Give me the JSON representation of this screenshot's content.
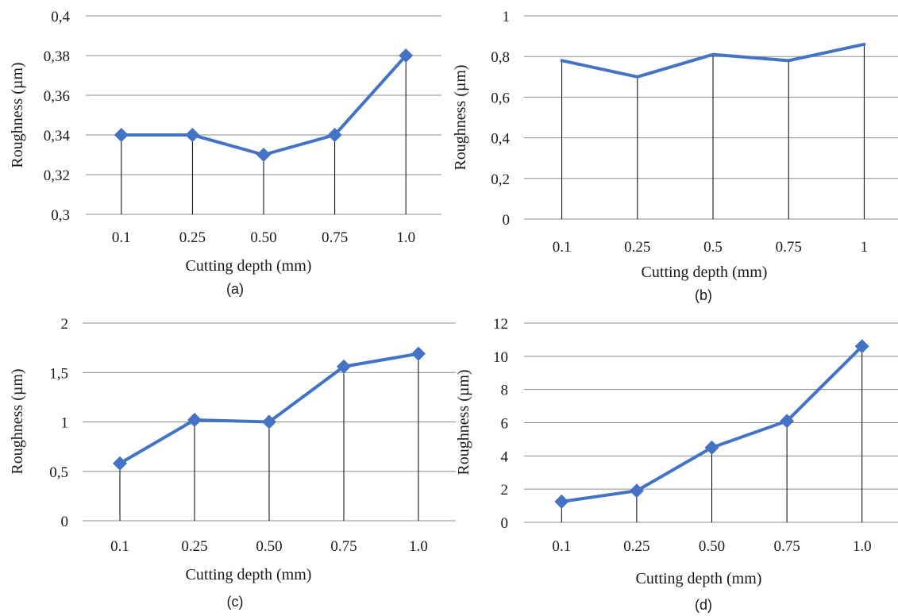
{
  "colors": {
    "series": "#4472c4",
    "grid": "#8c8c8c",
    "drop": "#000000"
  },
  "chart_data": [
    {
      "type": "line",
      "categories": [
        "0.1",
        "0.25",
        "0.50",
        "0.75",
        "1.0"
      ],
      "series": [
        {
          "values": [
            0.34,
            0.34,
            0.33,
            0.34,
            0.38
          ],
          "marker": "diamond"
        }
      ],
      "ylim": [
        0.3,
        0.4
      ],
      "yticks": [
        "0,3",
        "0,32",
        "0,34",
        "0,36",
        "0,38",
        "0,4"
      ],
      "xlabel": "Cutting depth (mm)",
      "ylabel": "Roughness (µm)",
      "caption": "(a)",
      "grid": true,
      "drop_lines": true
    },
    {
      "type": "line",
      "categories": [
        "0.1",
        "0.25",
        "0.5",
        "0.75",
        "1"
      ],
      "series": [
        {
          "values": [
            0.78,
            0.7,
            0.81,
            0.78,
            0.86
          ],
          "marker": "none"
        }
      ],
      "ylim": [
        0,
        1
      ],
      "yticks": [
        "0",
        "0,2",
        "0,4",
        "0,6",
        "0,8",
        "1"
      ],
      "xlabel": "Cutting depth (mm)",
      "ylabel": "Roughness (µm)",
      "caption": "(b)",
      "grid": true,
      "drop_lines": true
    },
    {
      "type": "line",
      "categories": [
        "0.1",
        "0.25",
        "0.50",
        "0.75",
        "1.0"
      ],
      "series": [
        {
          "values": [
            0.58,
            1.02,
            1.0,
            1.56,
            1.69
          ],
          "marker": "diamond"
        }
      ],
      "ylim": [
        0,
        2
      ],
      "yticks": [
        "0",
        "0,5",
        "1",
        "1,5",
        "2"
      ],
      "xlabel": "Cutting depth (mm)",
      "ylabel": "Roughness (µm)",
      "caption": "(c)",
      "grid": true,
      "drop_lines": true
    },
    {
      "type": "line",
      "categories": [
        "0.1",
        "0.25",
        "0.50",
        "0.75",
        "1.0"
      ],
      "series": [
        {
          "values": [
            1.25,
            1.9,
            4.5,
            6.1,
            10.6
          ],
          "marker": "diamond"
        }
      ],
      "ylim": [
        0,
        12
      ],
      "yticks": [
        "0",
        "2",
        "4",
        "6",
        "8",
        "10",
        "12"
      ],
      "xlabel": "Cutting depth (mm)",
      "ylabel": "Roughness (µm)",
      "caption": "(d)",
      "grid": true,
      "drop_lines": true
    }
  ]
}
